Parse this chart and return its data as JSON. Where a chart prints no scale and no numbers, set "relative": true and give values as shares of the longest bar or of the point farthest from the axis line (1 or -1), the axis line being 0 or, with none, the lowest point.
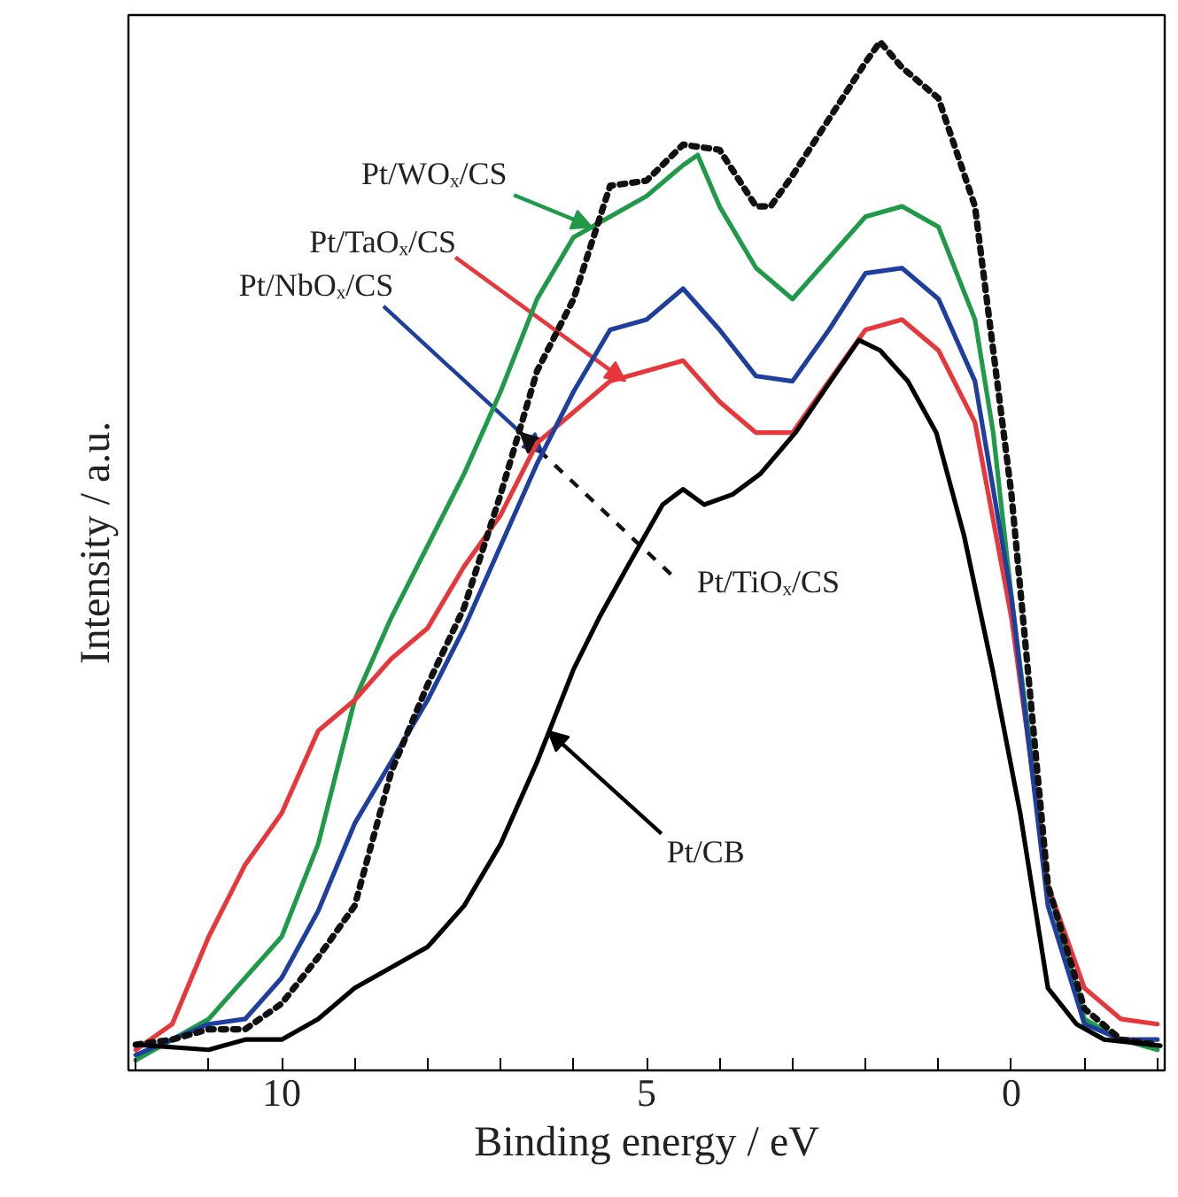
{
  "chart_data": {
    "type": "line",
    "relative": true,
    "xlabel": "Binding energy / eV",
    "ylabel": "Intensity / a.u.",
    "xlim": [
      12.1,
      -2.1
    ],
    "xticks": [
      {
        "value": 12,
        "label": null
      },
      {
        "value": 11,
        "label": null
      },
      10,
      {
        "value": 9,
        "label": null
      },
      {
        "value": 8,
        "label": null
      },
      {
        "value": 7,
        "label": null
      },
      {
        "value": 6,
        "label": null
      },
      5,
      {
        "value": 4,
        "label": null
      },
      {
        "value": 3,
        "label": null
      },
      {
        "value": 2,
        "label": null
      },
      {
        "value": 1,
        "label": null
      },
      0,
      {
        "value": -1,
        "label": null
      },
      {
        "value": -2,
        "label": null
      }
    ],
    "grid": false,
    "annotations": [
      {
        "text": "Pt/WOₓ/CS",
        "x": 5.75,
        "y": 0.82
      },
      {
        "text": "Pt/TaOₓ/CS",
        "x": 5.29,
        "y": 0.67
      },
      {
        "text": "Pt/NbOₓ/CS",
        "x": 6.42,
        "y": 0.6
      },
      {
        "text": "Pt/TiOₓ/CS",
        "x": 6.73,
        "y": 0.62
      },
      {
        "text": "Pt/CB",
        "x": 6.35,
        "y": 0.33
      }
    ],
    "series": [
      {
        "color": "#1f9a48",
        "line_style": "solid",
        "x": [
          12,
          11,
          10,
          9.5,
          9,
          8.5,
          8,
          7.5,
          7,
          6.5,
          6,
          5.5,
          5,
          4.5,
          4.3,
          4,
          3.5,
          3,
          2.5,
          2,
          1.5,
          1,
          0.5,
          0.25,
          0,
          -0.5,
          -1,
          -1.5,
          -2
        ],
        "values": [
          0.01,
          0.05,
          0.13,
          0.22,
          0.36,
          0.44,
          0.51,
          0.58,
          0.66,
          0.75,
          0.81,
          0.83,
          0.85,
          0.88,
          0.89,
          0.84,
          0.78,
          0.75,
          0.79,
          0.83,
          0.84,
          0.82,
          0.73,
          0.62,
          0.46,
          0.18,
          0.05,
          0.03,
          0.02
        ]
      },
      {
        "color": "#e8373a",
        "line_style": "solid",
        "x": [
          12,
          11.5,
          11,
          10.5,
          10,
          9.5,
          9,
          8.5,
          8,
          7.5,
          7,
          6.5,
          6,
          5.5,
          5,
          4.5,
          4,
          3.5,
          3,
          2.5,
          2,
          1.5,
          1,
          0.5,
          0,
          -0.5,
          -1,
          -1.5,
          -2
        ],
        "values": [
          0.02,
          0.045,
          0.13,
          0.2,
          0.25,
          0.33,
          0.36,
          0.4,
          0.43,
          0.49,
          0.54,
          0.61,
          0.64,
          0.67,
          0.68,
          0.69,
          0.65,
          0.62,
          0.62,
          0.67,
          0.72,
          0.73,
          0.7,
          0.63,
          0.44,
          0.18,
          0.08,
          0.05,
          0.045
        ]
      },
      {
        "color": "#1f3f9f",
        "line_style": "solid",
        "x": [
          12,
          11.5,
          11,
          10.5,
          10,
          9.5,
          9,
          8.5,
          8,
          7.5,
          7,
          6.5,
          6,
          5.5,
          5,
          4.5,
          4,
          3.5,
          3,
          2.5,
          2,
          1.5,
          1,
          0.5,
          0,
          -0.5,
          -1,
          -1.5,
          -2
        ],
        "values": [
          0.015,
          0.03,
          0.045,
          0.05,
          0.09,
          0.155,
          0.24,
          0.3,
          0.36,
          0.43,
          0.51,
          0.59,
          0.66,
          0.72,
          0.73,
          0.76,
          0.72,
          0.675,
          0.67,
          0.72,
          0.775,
          0.78,
          0.75,
          0.67,
          0.46,
          0.16,
          0.045,
          0.03,
          0.03
        ]
      },
      {
        "color": "#111111",
        "line_style": "dotted",
        "x": [
          12,
          11.5,
          11,
          10.5,
          10,
          9.5,
          9,
          8.5,
          8,
          7.5,
          7,
          6.5,
          6,
          5.5,
          5,
          4.5,
          4,
          3.5,
          3.3,
          3,
          2.5,
          2,
          1.8,
          1.5,
          1,
          0.5,
          0,
          -0.5,
          -1,
          -1.5,
          -2
        ],
        "values": [
          0.025,
          0.03,
          0.04,
          0.04,
          0.065,
          0.11,
          0.16,
          0.29,
          0.375,
          0.45,
          0.56,
          0.68,
          0.75,
          0.86,
          0.865,
          0.9,
          0.895,
          0.84,
          0.84,
          0.87,
          0.925,
          0.98,
          1.0,
          0.975,
          0.945,
          0.84,
          0.56,
          0.18,
          0.06,
          0.03,
          0.025
        ]
      },
      {
        "color": "#000000",
        "line_style": "solid",
        "x": [
          12,
          11,
          10.5,
          10,
          9.5,
          9,
          8.5,
          8,
          7.5,
          7,
          6.5,
          6,
          5.65,
          5.26,
          4.78,
          4.5,
          4.21,
          3.82,
          3.44,
          2.96,
          2.48,
          2.09,
          1.8,
          1.42,
          1.03,
          0.65,
          0.26,
          -0.12,
          -0.5,
          -0.89,
          -1.27,
          -2.04
        ],
        "values": [
          0.025,
          0.02,
          0.03,
          0.03,
          0.05,
          0.08,
          0.1,
          0.12,
          0.16,
          0.22,
          0.3,
          0.39,
          0.44,
          0.49,
          0.55,
          0.565,
          0.55,
          0.56,
          0.58,
          0.62,
          0.67,
          0.71,
          0.7,
          0.67,
          0.62,
          0.52,
          0.39,
          0.25,
          0.08,
          0.045,
          0.03,
          0.024
        ]
      }
    ]
  }
}
